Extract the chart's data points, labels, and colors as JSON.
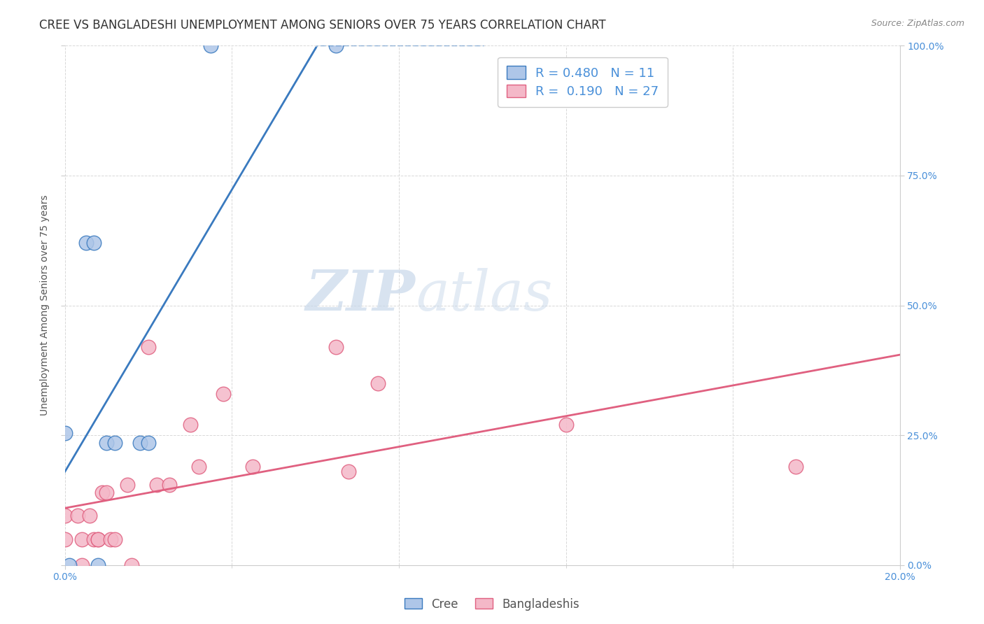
{
  "title": "CREE VS BANGLADESHI UNEMPLOYMENT AMONG SENIORS OVER 75 YEARS CORRELATION CHART",
  "source": "Source: ZipAtlas.com",
  "ylabel": "Unemployment Among Seniors over 75 years",
  "x_tick_labels": [
    "0.0%",
    "",
    "",
    "",
    "",
    "",
    "",
    "",
    "",
    "",
    "20.0%"
  ],
  "x_tick_vals": [
    0.0,
    0.02,
    0.04,
    0.06,
    0.08,
    0.1,
    0.12,
    0.14,
    0.16,
    0.18,
    0.2
  ],
  "x_minor_ticks": [
    0.0,
    0.04,
    0.08,
    0.12,
    0.16,
    0.2
  ],
  "y_tick_labels": [
    "0.0%",
    "25.0%",
    "50.0%",
    "75.0%",
    "100.0%"
  ],
  "y_tick_vals": [
    0.0,
    0.25,
    0.5,
    0.75,
    1.0
  ],
  "xlim": [
    0.0,
    0.2
  ],
  "ylim": [
    0.0,
    1.0
  ],
  "cree_R": 0.48,
  "cree_N": 11,
  "bangladeshi_R": 0.19,
  "bangladeshi_N": 27,
  "cree_color": "#aec6e8",
  "bangladeshi_color": "#f4b8c8",
  "cree_line_color": "#3a7abf",
  "bangladeshi_line_color": "#e06080",
  "watermark_zip": "ZIP",
  "watermark_atlas": "atlas",
  "cree_points": [
    [
      0.0,
      0.255
    ],
    [
      0.001,
      0.0
    ],
    [
      0.005,
      0.62
    ],
    [
      0.007,
      0.62
    ],
    [
      0.008,
      0.0
    ],
    [
      0.01,
      0.235
    ],
    [
      0.012,
      0.235
    ],
    [
      0.018,
      0.235
    ],
    [
      0.02,
      0.235
    ],
    [
      0.035,
      1.0
    ],
    [
      0.065,
      1.0
    ]
  ],
  "bangladeshi_points": [
    [
      0.0,
      0.095
    ],
    [
      0.0,
      0.05
    ],
    [
      0.003,
      0.095
    ],
    [
      0.004,
      0.05
    ],
    [
      0.004,
      0.0
    ],
    [
      0.006,
      0.095
    ],
    [
      0.007,
      0.05
    ],
    [
      0.008,
      0.05
    ],
    [
      0.008,
      0.05
    ],
    [
      0.009,
      0.14
    ],
    [
      0.01,
      0.14
    ],
    [
      0.011,
      0.05
    ],
    [
      0.012,
      0.05
    ],
    [
      0.015,
      0.155
    ],
    [
      0.016,
      0.0
    ],
    [
      0.02,
      0.42
    ],
    [
      0.022,
      0.155
    ],
    [
      0.025,
      0.155
    ],
    [
      0.03,
      0.27
    ],
    [
      0.032,
      0.19
    ],
    [
      0.038,
      0.33
    ],
    [
      0.045,
      0.19
    ],
    [
      0.065,
      0.42
    ],
    [
      0.068,
      0.18
    ],
    [
      0.075,
      0.35
    ],
    [
      0.12,
      0.27
    ],
    [
      0.175,
      0.19
    ]
  ],
  "background_color": "#ffffff",
  "grid_color": "#d8d8d8",
  "title_fontsize": 12,
  "axis_label_fontsize": 10,
  "tick_fontsize": 10,
  "legend_fontsize": 13
}
